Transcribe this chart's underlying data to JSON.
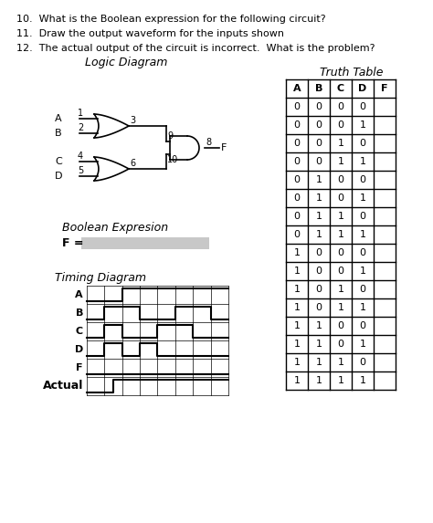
{
  "questions": [
    "10.  What is the Boolean expression for the following circuit?",
    "11.  Draw the output waveform for the inputs shown",
    "12.  The actual output of the circuit is incorrect.  What is the problem?"
  ],
  "logic_diagram_title": "Logic Diagram",
  "truth_table_title": "Truth Table",
  "truth_table_headers": [
    "A",
    "B",
    "C",
    "D",
    "F"
  ],
  "truth_table_data": [
    [
      0,
      0,
      0,
      0,
      ""
    ],
    [
      0,
      0,
      0,
      1,
      ""
    ],
    [
      0,
      0,
      1,
      0,
      ""
    ],
    [
      0,
      0,
      1,
      1,
      ""
    ],
    [
      0,
      1,
      0,
      0,
      ""
    ],
    [
      0,
      1,
      0,
      1,
      ""
    ],
    [
      0,
      1,
      1,
      0,
      ""
    ],
    [
      0,
      1,
      1,
      1,
      ""
    ],
    [
      1,
      0,
      0,
      0,
      ""
    ],
    [
      1,
      0,
      0,
      1,
      ""
    ],
    [
      1,
      0,
      1,
      0,
      ""
    ],
    [
      1,
      0,
      1,
      1,
      ""
    ],
    [
      1,
      1,
      0,
      0,
      ""
    ],
    [
      1,
      1,
      0,
      1,
      ""
    ],
    [
      1,
      1,
      1,
      0,
      ""
    ],
    [
      1,
      1,
      1,
      1,
      ""
    ]
  ],
  "boolean_label": "Boolean Expresion",
  "f_label": "F =",
  "timing_label": "Timing Diagram",
  "timing_signals": [
    "A",
    "B",
    "C",
    "D",
    "F",
    "Actual"
  ],
  "background_color": "#ffffff",
  "text_color": "#000000",
  "timing_A": [
    0,
    0,
    0,
    0,
    1,
    1,
    1,
    1,
    1,
    1,
    1,
    1,
    1,
    1,
    1,
    1
  ],
  "timing_B": [
    0,
    0,
    1,
    1,
    1,
    1,
    0,
    0,
    0,
    0,
    1,
    1,
    1,
    1,
    0,
    0
  ],
  "timing_C": [
    0,
    0,
    1,
    1,
    0,
    0,
    0,
    0,
    1,
    1,
    1,
    1,
    0,
    0,
    0,
    0
  ],
  "timing_D": [
    0,
    0,
    1,
    1,
    0,
    0,
    1,
    1,
    0,
    0,
    0,
    0,
    0,
    0,
    0,
    0
  ],
  "timing_F": [
    0,
    0,
    0,
    0,
    0,
    0,
    0,
    0,
    0,
    0,
    0,
    0,
    0,
    0,
    0,
    0
  ],
  "timing_Actual": [
    0,
    0,
    0,
    1,
    1,
    1,
    1,
    1,
    1,
    1,
    1,
    1,
    1,
    1,
    1,
    1
  ],
  "q_fontsize": 8,
  "title_fontsize": 9,
  "body_fontsize": 8,
  "small_fontsize": 7
}
